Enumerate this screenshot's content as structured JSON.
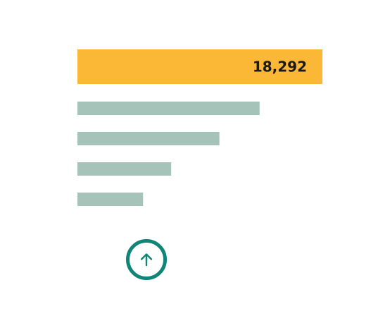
{
  "chart_data": {
    "type": "bar",
    "orientation": "horizontal",
    "categories": [
      "",
      "",
      "",
      "",
      ""
    ],
    "values": [
      18292,
      13600,
      10600,
      7000,
      4900
    ],
    "value_labels": [
      "18,292",
      "",
      "",
      "",
      ""
    ],
    "highlight_index": 0,
    "colors": {
      "highlight": "#fbb836",
      "default": "#a5c3b9",
      "label": "#1a1a1a"
    },
    "grid": false,
    "legend": "none"
  },
  "controls": {
    "scroll_up_icon": "arrow-up-icon",
    "accent_color": "#0f8576"
  }
}
